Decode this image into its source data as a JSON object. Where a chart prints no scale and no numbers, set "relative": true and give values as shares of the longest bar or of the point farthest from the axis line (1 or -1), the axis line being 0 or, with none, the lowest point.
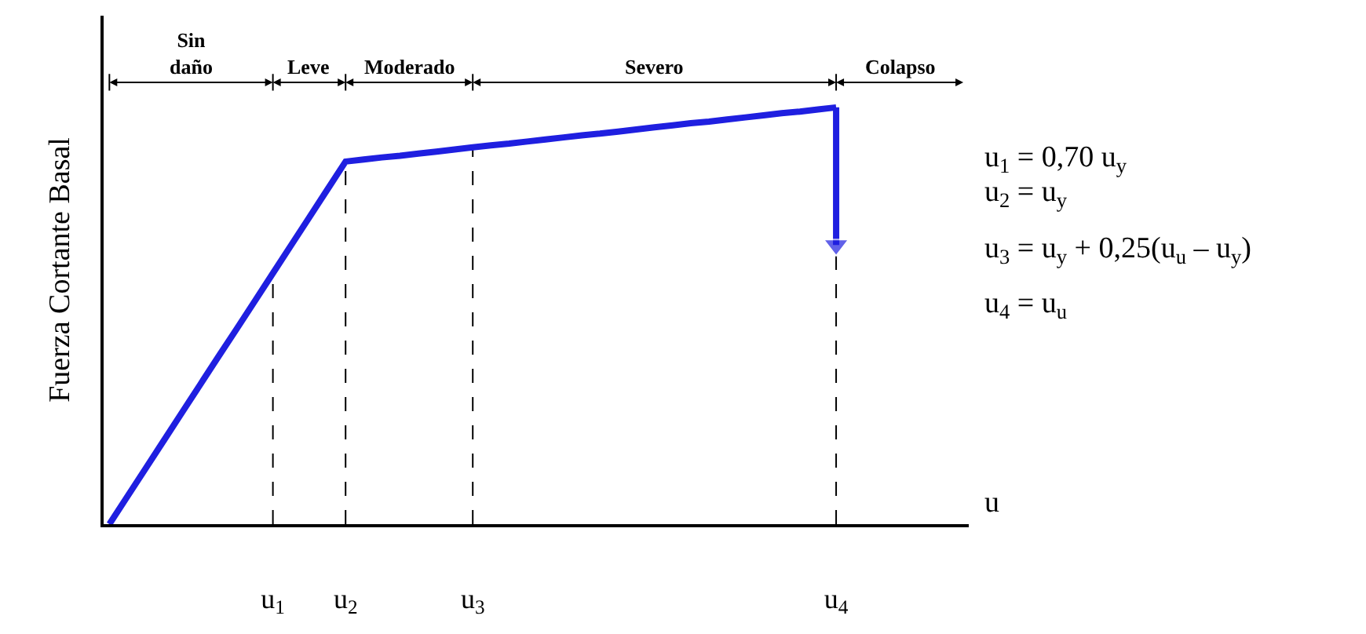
{
  "chart_data": {
    "type": "line",
    "relative": true,
    "ylabel": "Fuerza Cortante Basal",
    "xlabel": "u",
    "categories": [
      null,
      null,
      null,
      null,
      null,
      null,
      null,
      null,
      null,
      "u$_{1}$",
      null,
      null,
      null,
      "u$_{2}$",
      null,
      null,
      null,
      null,
      null,
      null,
      "u$_{3}$",
      null,
      null,
      null,
      null,
      null,
      null,
      null,
      null,
      null,
      null,
      null,
      null,
      null,
      null,
      null,
      null,
      null,
      null,
      null,
      "u$_{4}$",
      null,
      null,
      null,
      null,
      null,
      null,
      null
    ],
    "series": [
      {
        "color": "#1f1fe0",
        "values": [
          0,
          0.067,
          0.134,
          0.201,
          0.268,
          0.335,
          0.402,
          0.468,
          0.535,
          0.602,
          0.669,
          0.736,
          0.803,
          0.87,
          0.875,
          0.88,
          0.884,
          0.889,
          0.894,
          0.899,
          0.904,
          0.909,
          0.913,
          0.918,
          0.923,
          0.928,
          0.933,
          0.937,
          0.942,
          0.947,
          0.952,
          0.957,
          0.962,
          0.966,
          0.971,
          0.976,
          0.981,
          0.986,
          0.99,
          0.995,
          1,
          null,
          null,
          null,
          null,
          null,
          null,
          null
        ]
      },
      {
        "color": "#1f1fe0",
        "x": [
          "u$_{4}$",
          "u$_{4}$"
        ],
        "values": [
          1,
          0.67
        ],
        "marker": "triangle"
      }
    ],
    "annotations": [
      "Sin\ndaño",
      "Leve",
      "Moderado",
      "Severo",
      "Colapso",
      "u$_{1}$ = 0,70 u$_{y}$",
      "u$_{2}$ = u$_{y}$",
      "u$_{3}$ = u$_{y}$ + 0,25(u$_{u}$ – u$_{y}$)",
      "u$_{4}$ = u$_{u}$"
    ],
    "marker": "none",
    "line_style": "solid",
    "grid": "x"
  }
}
